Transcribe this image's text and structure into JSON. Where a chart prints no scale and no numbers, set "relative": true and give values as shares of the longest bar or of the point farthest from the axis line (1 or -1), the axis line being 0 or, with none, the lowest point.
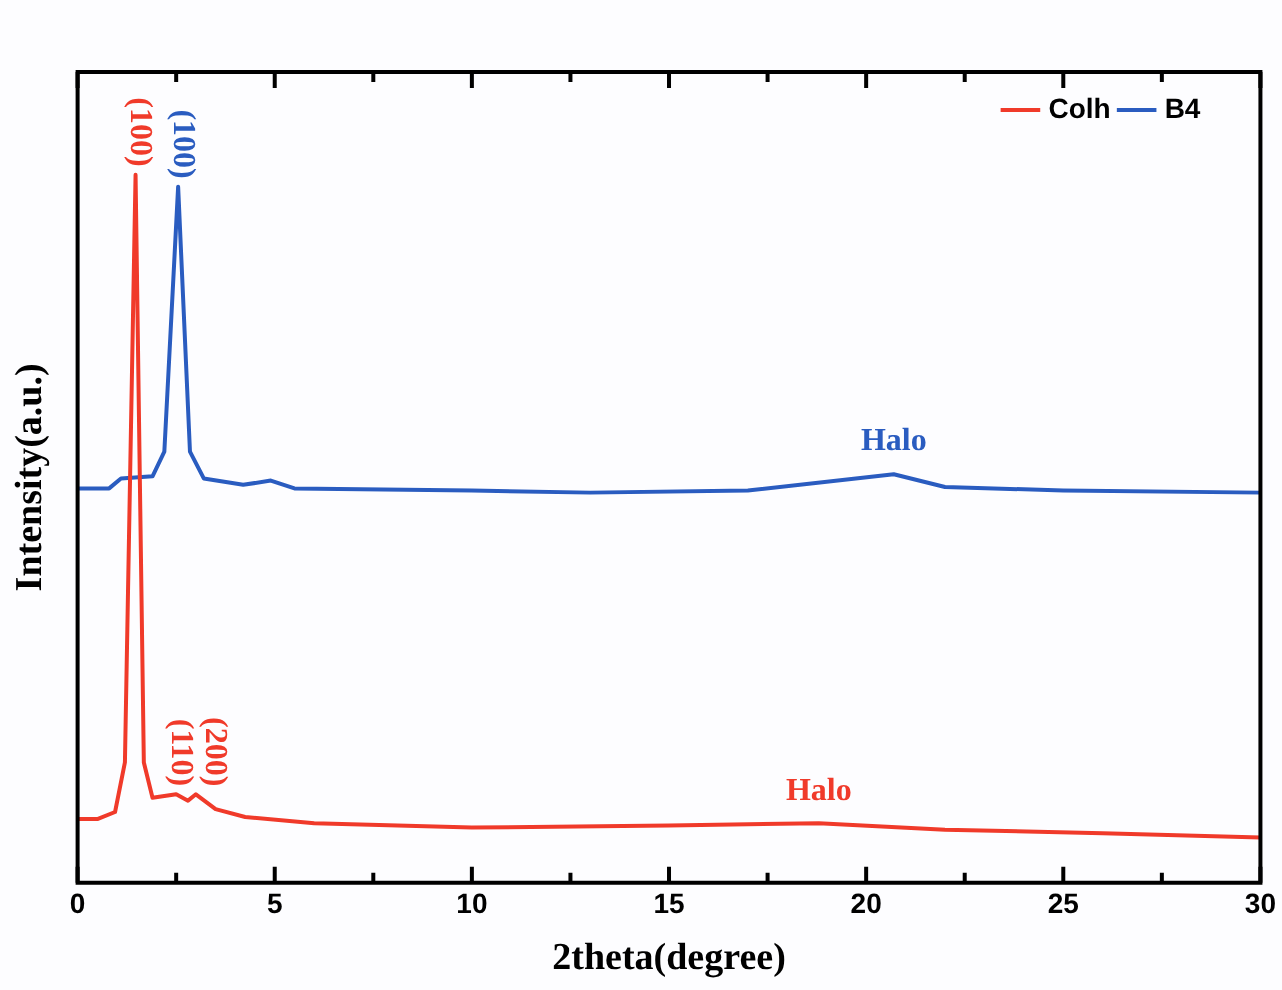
{
  "chart_data": {
    "type": "line",
    "relative": true,
    "xlabel": "2theta(degree)",
    "ylabel": "Intensity(a.u.)",
    "xlim": [
      0,
      30
    ],
    "xticks": [
      0,
      {
        "value": 2.5,
        "label": null
      },
      5,
      {
        "value": 7.5,
        "label": null
      },
      10,
      {
        "value": 12.5,
        "label": null
      },
      15,
      {
        "value": 17.5,
        "label": null
      },
      20,
      {
        "value": 22.5,
        "label": null
      },
      25,
      {
        "value": 27.5,
        "label": null
      },
      30
    ],
    "legend": "top right",
    "grid": false,
    "marker": "none",
    "line_style": "solid",
    "series": [
      {
        "name": "Colh",
        "color": "#f03a2a",
        "x": [
          0,
          0.5,
          0.95,
          1.2,
          1.47,
          1.68,
          1.9,
          2.5,
          2.8,
          3.0,
          3.5,
          4.25,
          6,
          10,
          15,
          18.8,
          22,
          26,
          30
        ],
        "values": [
          0.09,
          0.09,
          0.1,
          0.17,
          1.0,
          0.17,
          0.12,
          0.125,
          0.116,
          0.125,
          0.104,
          0.093,
          0.084,
          0.078,
          0.081,
          0.084,
          0.075,
          0.07,
          0.064
        ]
      },
      {
        "name": "B4",
        "color": "#2a5cc0",
        "x": [
          0,
          0.8,
          1.1,
          1.9,
          2.2,
          2.55,
          2.85,
          3.2,
          4.2,
          4.9,
          5.5,
          10,
          13,
          17,
          20.7,
          22,
          25,
          30
        ],
        "values": [
          0.557,
          0.557,
          0.571,
          0.574,
          0.609,
          0.983,
          0.609,
          0.571,
          0.562,
          0.568,
          0.557,
          0.554,
          0.551,
          0.554,
          0.577,
          0.559,
          0.554,
          0.551
        ]
      }
    ],
    "annotations": [
      {
        "text": "(100)",
        "x": 1.47,
        "y": 1.0
      },
      {
        "text": "(100)",
        "x": 2.55,
        "y": 0.983
      },
      {
        "text": "(110)",
        "x": 2.5,
        "y": 0.125
      },
      {
        "text": "(200)",
        "x": 3.0,
        "y": 0.125
      },
      {
        "text": "Halo",
        "x": 20.7,
        "y": 0.577
      },
      {
        "text": "Halo",
        "x": 18.8,
        "y": 0.084
      }
    ]
  }
}
